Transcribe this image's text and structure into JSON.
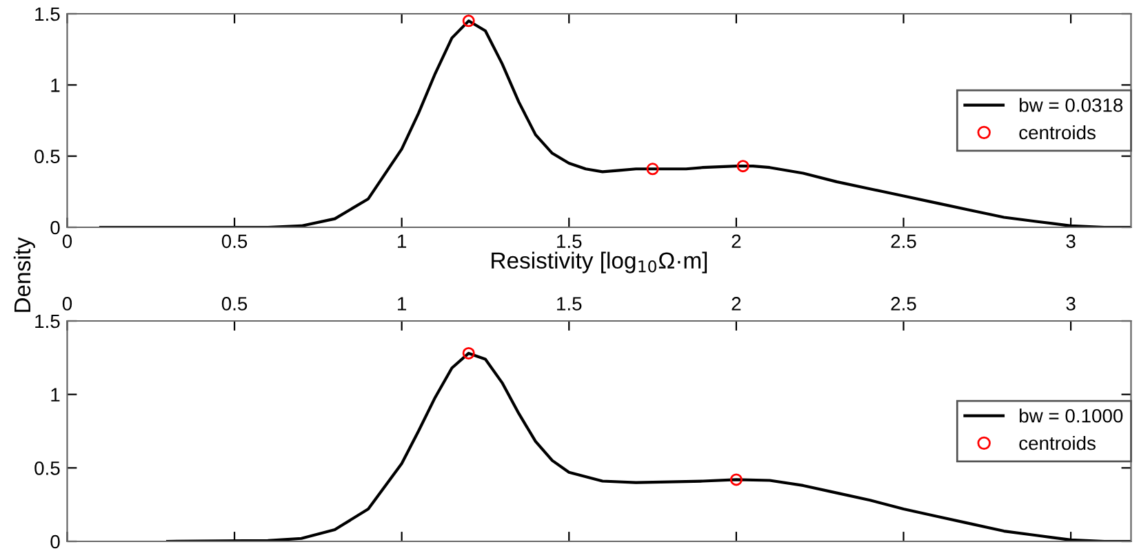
{
  "chart_data": [
    {
      "type": "line",
      "xlabel": "Resistivity [log$_{10}$Ω·m]",
      "ylabel": "Density",
      "xlim": [
        0,
        3.18
      ],
      "xticks": [
        0,
        0.5,
        1,
        1.5,
        2,
        2.5,
        3
      ],
      "ylim": [
        0,
        1.5
      ],
      "yticks": [
        0,
        0.5,
        1,
        1.5
      ],
      "grid": false,
      "legend": "right",
      "series": [
        {
          "name": "bw = 0.0318",
          "type": "line",
          "color": "#000000",
          "marker": "none",
          "line_style": "solid",
          "x": [
            0.1,
            0.6,
            0.7,
            0.8,
            0.9,
            1.0,
            1.05,
            1.1,
            1.15,
            1.2,
            1.25,
            1.3,
            1.35,
            1.4,
            1.45,
            1.5,
            1.55,
            1.6,
            1.65,
            1.7,
            1.75,
            1.8,
            1.85,
            1.9,
            2.0,
            2.05,
            2.1,
            2.2,
            2.3,
            2.4,
            2.5,
            2.6,
            2.7,
            2.8,
            2.9,
            3.0,
            3.1,
            3.18
          ],
          "values": [
            0,
            0,
            0.01,
            0.06,
            0.2,
            0.55,
            0.8,
            1.08,
            1.33,
            1.45,
            1.38,
            1.15,
            0.88,
            0.65,
            0.52,
            0.45,
            0.41,
            0.39,
            0.4,
            0.41,
            0.41,
            0.41,
            0.41,
            0.42,
            0.43,
            0.43,
            0.42,
            0.38,
            0.32,
            0.27,
            0.22,
            0.17,
            0.12,
            0.07,
            0.04,
            0.01,
            0,
            0
          ]
        },
        {
          "name": "centroids",
          "type": "scatter",
          "color": "#ff0000",
          "marker": "circle",
          "x": [
            1.2,
            1.75,
            2.02
          ],
          "values": [
            1.45,
            0.41,
            0.43
          ]
        }
      ]
    },
    {
      "type": "line",
      "xlim": [
        0,
        3.18
      ],
      "xticks": [
        0,
        0.5,
        1,
        1.5,
        2,
        2.5,
        3
      ],
      "x2lim": [
        0,
        3.18
      ],
      "x2ticks": [
        0,
        0.5,
        1,
        1.5,
        2,
        2.5,
        3
      ],
      "tick_labels": "y",
      "ylim": [
        0,
        1.5
      ],
      "yticks": [
        0,
        0.5,
        1,
        1.5
      ],
      "grid": false,
      "legend": "right",
      "series": [
        {
          "name": "bw = 0.1000",
          "type": "line",
          "color": "#000000",
          "marker": "none",
          "line_style": "solid",
          "x": [
            0.3,
            0.6,
            0.7,
            0.8,
            0.9,
            1.0,
            1.05,
            1.1,
            1.15,
            1.2,
            1.25,
            1.3,
            1.35,
            1.4,
            1.45,
            1.5,
            1.6,
            1.7,
            1.8,
            1.9,
            2.0,
            2.1,
            2.2,
            2.3,
            2.4,
            2.5,
            2.6,
            2.7,
            2.8,
            2.9,
            3.0,
            3.1,
            3.18
          ],
          "values": [
            0,
            0.005,
            0.02,
            0.08,
            0.22,
            0.53,
            0.75,
            0.98,
            1.18,
            1.28,
            1.24,
            1.08,
            0.87,
            0.68,
            0.55,
            0.47,
            0.41,
            0.4,
            0.405,
            0.41,
            0.42,
            0.415,
            0.38,
            0.33,
            0.28,
            0.22,
            0.17,
            0.12,
            0.07,
            0.04,
            0.01,
            0,
            0
          ]
        },
        {
          "name": "centroids",
          "type": "scatter",
          "color": "#ff0000",
          "marker": "circle",
          "x": [
            1.2,
            2.0
          ],
          "values": [
            1.28,
            0.42
          ]
        }
      ]
    }
  ]
}
